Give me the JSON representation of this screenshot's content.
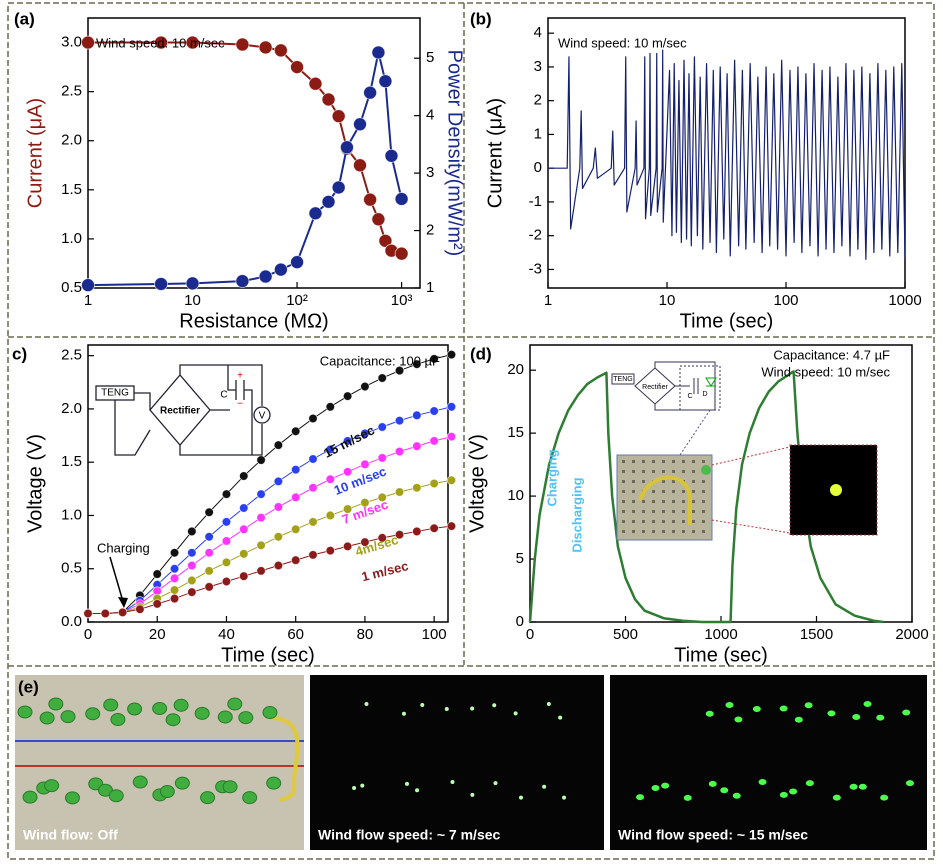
{
  "chart_data": [
    {
      "type": "line",
      "label": "(a)",
      "xscale": "log",
      "markers": true,
      "xlabel": "Resistance (MΩ)",
      "ylabel": "Current (μA)",
      "y2label": "Power Density(mW/m²)",
      "ylabel_color": "#8c1c13",
      "y2label_color": "#1b2a8f",
      "annotations": [
        "Wind speed: 10 m/sec"
      ],
      "x": [
        1,
        5,
        10,
        30,
        50,
        70,
        100,
        150,
        200,
        250,
        300,
        400,
        500,
        600,
        700,
        800,
        1000
      ],
      "series": [
        {
          "color": "#8c1c13",
          "values": [
            3.0,
            3.0,
            3.0,
            2.98,
            2.95,
            2.92,
            2.75,
            2.58,
            2.42,
            2.25,
            1.92,
            1.75,
            1.4,
            1.2,
            0.98,
            0.88,
            0.85
          ]
        },
        {
          "color": "#1b2a8f",
          "axis": "y2",
          "values": [
            1.05,
            1.07,
            1.08,
            1.12,
            1.2,
            1.32,
            1.45,
            2.3,
            2.5,
            2.75,
            3.45,
            3.85,
            4.4,
            5.1,
            4.6,
            3.3,
            2.55
          ]
        }
      ],
      "xlim": [
        1,
        1500
      ],
      "xticks": [
        1,
        10,
        {
          "value": 100,
          "label": "10²"
        },
        {
          "value": 1000,
          "label": "10³"
        }
      ],
      "ylim": [
        0.5,
        3.25
      ],
      "yticks": [
        0.5,
        {
          "value": 1,
          "label": "1.0"
        },
        1.5,
        {
          "value": 2,
          "label": "2.0"
        },
        2.5,
        {
          "value": 3,
          "label": "3.0"
        }
      ],
      "y2lim": [
        1,
        5.7
      ],
      "y2ticks": [
        1,
        2,
        3,
        4,
        5
      ]
    },
    {
      "type": "line",
      "label": "(b)",
      "xscale": "log",
      "markers": false,
      "xlabel": "Time (sec)",
      "ylabel": "Current (μA)",
      "annotations": [
        "Wind speed: 10 m/sec"
      ],
      "x": [
        1,
        1.45,
        1.5,
        1.55,
        1.85,
        1.9,
        1.95,
        2.4,
        2.5,
        2.6,
        3.4,
        3.5,
        3.6,
        4.4,
        4.5,
        4.6,
        5.4,
        5.5,
        5.6,
        6.4,
        6.5,
        6.6,
        7.1,
        7.2,
        7.3,
        8.1,
        8.2,
        8.3,
        9.1,
        9.2,
        9.3,
        10.5,
        11,
        11.5,
        12,
        12.6,
        13.2,
        13.9,
        14.6,
        15.3,
        16,
        17,
        18,
        19,
        20,
        21.5,
        23,
        24.5,
        26,
        28,
        30,
        32,
        34,
        37,
        40,
        43,
        46,
        50,
        54,
        58,
        63,
        68,
        73,
        79,
        85,
        92,
        100,
        108,
        117,
        126,
        136,
        147,
        159,
        172,
        186,
        201,
        217,
        234,
        253,
        273,
        295,
        319,
        345,
        372,
        402,
        434,
        469,
        507,
        548,
        592,
        639,
        690,
        745,
        805,
        870,
        940,
        1000
      ],
      "series": [
        {
          "color": "#14206e",
          "values": [
            0,
            0,
            3.3,
            -1.8,
            0,
            1.7,
            -0.6,
            0,
            0.6,
            -0.3,
            0,
            1.1,
            -0.5,
            0,
            3.3,
            -1.3,
            0,
            1.4,
            -0.5,
            0,
            3.3,
            -1.5,
            0,
            3.4,
            -1.4,
            0,
            3.4,
            -1.3,
            0,
            3.5,
            -1.6,
            2.9,
            -2.0,
            3.1,
            -1.9,
            2.6,
            -2.2,
            3.2,
            -2.1,
            2.8,
            -2.3,
            3.3,
            -2.0,
            2.7,
            -2.4,
            3.1,
            -2.2,
            2.9,
            -2.5,
            3.0,
            -2.1,
            2.8,
            -2.6,
            3.2,
            -2.3,
            2.9,
            -2.4,
            3.1,
            -2.2,
            2.7,
            -2.5,
            3.0,
            -2.3,
            2.8,
            -2.4,
            3.2,
            -2.6,
            2.9,
            -2.2,
            3.0,
            -2.5,
            2.8,
            -2.3,
            3.1,
            -2.6,
            2.9,
            -2.4,
            3.0,
            -2.5,
            2.7,
            -2.3,
            3.1,
            -2.6,
            2.9,
            -2.4,
            3.0,
            -2.7,
            2.8,
            -2.5,
            3.1,
            -2.4,
            2.9,
            -2.6,
            3.0,
            -2.5,
            3.1,
            -2.7
          ]
        }
      ],
      "xlim": [
        1,
        1000
      ],
      "xticks": [
        1,
        10,
        100,
        1000
      ],
      "ylim": [
        -3.55,
        4.45
      ],
      "yticks": [
        -3,
        -2,
        -1,
        0,
        1,
        2,
        3,
        4
      ]
    },
    {
      "type": "line",
      "label": "c)",
      "markers": true,
      "xlabel": "Time (sec)",
      "ylabel": "Voltage (V)",
      "annotations": [
        "Capacitance: 100 µF",
        "Charging"
      ],
      "inset_texts": [
        "TENG",
        "Rectifier",
        "C",
        "+",
        "−",
        "V"
      ],
      "x": [
        0,
        5,
        10,
        15,
        20,
        25,
        30,
        35,
        40,
        45,
        50,
        55,
        60,
        65,
        70,
        75,
        80,
        85,
        90,
        95,
        100,
        105
      ],
      "series": [
        {
          "name": "15 m/sec",
          "color": "#111111",
          "values": [
            0.08,
            0.08,
            0.09,
            0.25,
            0.45,
            0.65,
            0.85,
            1.03,
            1.2,
            1.37,
            1.52,
            1.66,
            1.79,
            1.91,
            2.02,
            2.12,
            2.21,
            2.29,
            2.36,
            2.42,
            2.47,
            2.51
          ]
        },
        {
          "name": "10 m/sec",
          "color": "#2a3ff0",
          "values": [
            0.08,
            0.08,
            0.09,
            0.2,
            0.35,
            0.5,
            0.65,
            0.8,
            0.94,
            1.07,
            1.2,
            1.32,
            1.43,
            1.53,
            1.62,
            1.7,
            1.77,
            1.83,
            1.89,
            1.94,
            1.98,
            2.02
          ]
        },
        {
          "name": "7 m/sec",
          "color": "#ff33ff",
          "values": [
            0.08,
            0.08,
            0.09,
            0.17,
            0.29,
            0.41,
            0.53,
            0.65,
            0.76,
            0.87,
            0.98,
            1.08,
            1.17,
            1.26,
            1.34,
            1.41,
            1.48,
            1.54,
            1.6,
            1.65,
            1.7,
            1.74
          ]
        },
        {
          "name": "4m/sec",
          "color": "#a3a019",
          "values": [
            0.08,
            0.08,
            0.09,
            0.14,
            0.22,
            0.3,
            0.39,
            0.48,
            0.56,
            0.64,
            0.72,
            0.8,
            0.87,
            0.94,
            1.0,
            1.06,
            1.12,
            1.17,
            1.22,
            1.26,
            1.3,
            1.33
          ]
        },
        {
          "name": "1 m/sec",
          "color": "#8b1a1a",
          "values": [
            0.08,
            0.08,
            0.09,
            0.12,
            0.17,
            0.22,
            0.28,
            0.33,
            0.38,
            0.43,
            0.48,
            0.53,
            0.58,
            0.63,
            0.67,
            0.71,
            0.75,
            0.79,
            0.82,
            0.85,
            0.88,
            0.9
          ]
        }
      ],
      "xlim": [
        0,
        104
      ],
      "xticks": [
        0,
        20,
        40,
        60,
        80,
        100
      ],
      "ylim": [
        0,
        2.6
      ],
      "yticks": [
        {
          "value": 0,
          "label": "0.0"
        },
        0.5,
        {
          "value": 1,
          "label": "1.0"
        },
        1.5,
        {
          "value": 2,
          "label": "2.0"
        },
        2.5
      ]
    },
    {
      "type": "line",
      "label": "(d)",
      "markers": false,
      "xlabel": "Time (sec)",
      "ylabel": "Voltage (V)",
      "annotations": [
        "Capacitance: 4.7 µF",
        "Wind speed: 10 m/sec",
        "Charging",
        "Discharging"
      ],
      "inset_texts": [
        "TENG",
        "Rectifier",
        "C",
        "D"
      ],
      "x": [
        0,
        25,
        50,
        100,
        150,
        200,
        250,
        300,
        350,
        400,
        410,
        430,
        460,
        500,
        550,
        600,
        700,
        800,
        900,
        1000,
        1050,
        1060,
        1080,
        1110,
        1150,
        1200,
        1250,
        1300,
        1370,
        1380,
        1400,
        1430,
        1470,
        1520,
        1600,
        1700,
        1800,
        1850
      ],
      "series": [
        {
          "color": "#2e7d32",
          "values": [
            0,
            5,
            8.5,
            12.5,
            15,
            16.8,
            18,
            18.9,
            19.4,
            19.8,
            15,
            10,
            6,
            3.5,
            1.8,
            0.9,
            0.3,
            0.1,
            0,
            0,
            0,
            4.5,
            9,
            12.5,
            15,
            17,
            18.3,
            19.1,
            19.8,
            19.9,
            15,
            10,
            6,
            3.5,
            1.4,
            0.5,
            0.1,
            0
          ]
        }
      ],
      "xlim": [
        0,
        2000
      ],
      "xticks": [
        0,
        500,
        1000,
        1500,
        2000
      ],
      "ylim": [
        0,
        22
      ],
      "yticks": [
        0,
        5,
        10,
        15,
        20
      ]
    }
  ],
  "photo_panel": {
    "label": "(e)",
    "captions": [
      "Wind flow: Off",
      "Wind flow speed: ~ 7 m/sec",
      "Wind flow speed: ~ 15 m/sec"
    ]
  }
}
